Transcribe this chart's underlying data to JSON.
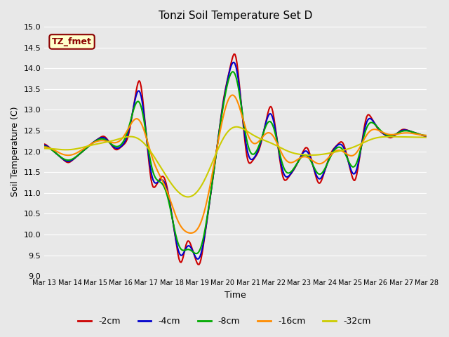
{
  "title": "Tonzi Soil Temperature Set D",
  "xlabel": "Time",
  "ylabel": "Soil Temperature (C)",
  "ylim": [
    9.0,
    15.0
  ],
  "yticks": [
    9.0,
    9.5,
    10.0,
    10.5,
    11.0,
    11.5,
    12.0,
    12.5,
    13.0,
    13.5,
    14.0,
    14.5,
    15.0
  ],
  "x_labels": [
    "Mar 13",
    "Mar 14",
    "Mar 15",
    "Mar 16",
    "Mar 17",
    "Mar 18",
    "Mar 19",
    "Mar 20",
    "Mar 21",
    "Mar 22",
    "Mar 23",
    "Mar 24",
    "Mar 25",
    "Mar 26",
    "Mar 27",
    "Mar 28"
  ],
  "annotation_text": "TZ_fmet",
  "annotation_color": "#8B0000",
  "annotation_bg": "#FFFFCC",
  "annotation_border": "#8B0000",
  "bg_color": "#E8E8E8",
  "plot_bg": "#E8E8E8",
  "grid_color": "white",
  "series": {
    "-2cm": {
      "color": "#CC0000",
      "lw": 1.5
    },
    "-4cm": {
      "color": "#0000CC",
      "lw": 1.5
    },
    "-8cm": {
      "color": "#00AA00",
      "lw": 1.5
    },
    "-16cm": {
      "color": "#FF8C00",
      "lw": 1.5
    },
    "-32cm": {
      "color": "#CCCC00",
      "lw": 1.5
    }
  },
  "num_points": 384,
  "legend_loc": "lower center",
  "legend_ncol": 5
}
